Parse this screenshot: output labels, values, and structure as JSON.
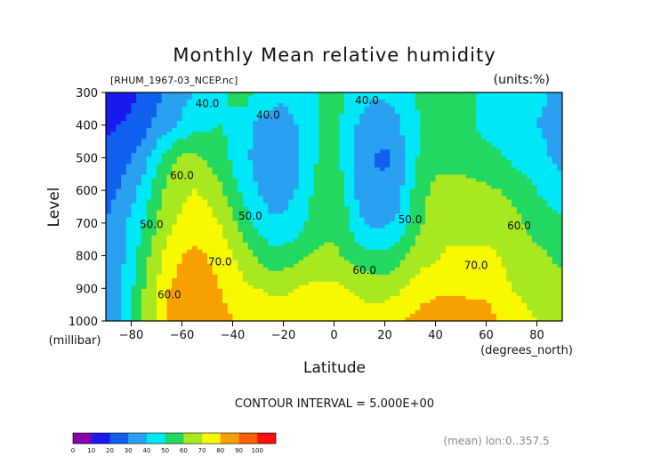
{
  "chart_data": {
    "type": "heatmap",
    "title": "Monthly Mean relative humidity",
    "file_label": "[RHUM_1967-03_NCEP.nc]",
    "units_label": "(units:%)",
    "ylabel": "Level",
    "ylabel_units": "(millibar)",
    "xlabel": "Latitude",
    "xlabel_units": "(degrees_north)",
    "xlim": [
      -90,
      90
    ],
    "ylim": [
      1000,
      300
    ],
    "x_ticks": [
      -80,
      -60,
      -40,
      -20,
      0,
      20,
      40,
      60,
      80
    ],
    "y_ticks": [
      300,
      400,
      500,
      600,
      700,
      800,
      900,
      1000
    ],
    "contour_interval_text": "CONTOUR INTERVAL = 5.000E+00",
    "footer_text": "(mean) lon:0..357.5",
    "colorbar": {
      "levels": [
        0,
        10,
        20,
        30,
        40,
        50,
        60,
        70,
        80,
        90,
        100
      ],
      "colors": [
        "#8800aa",
        "#1a1aee",
        "#1060f0",
        "#2aa0f0",
        "#00e8f8",
        "#22d860",
        "#a8e820",
        "#f8f800",
        "#f8a000",
        "#f86000",
        "#f81010"
      ]
    },
    "contour_labels": [
      {
        "text": "40.0",
        "lat": -50,
        "lev": 345
      },
      {
        "text": "40.0",
        "lat": -26,
        "lev": 380
      },
      {
        "text": "40.0",
        "lat": 13,
        "lev": 335
      },
      {
        "text": "50.0",
        "lat": -72,
        "lev": 715
      },
      {
        "text": "50.0",
        "lat": -33,
        "lev": 690
      },
      {
        "text": "50.0",
        "lat": 30,
        "lev": 700
      },
      {
        "text": "60.0",
        "lat": -60,
        "lev": 565
      },
      {
        "text": "60.0",
        "lat": 12,
        "lev": 855
      },
      {
        "text": "60.0",
        "lat": 73,
        "lev": 720
      },
      {
        "text": "60.0",
        "lat": -65,
        "lev": 930
      },
      {
        "text": "70.0",
        "lat": -45,
        "lev": 830
      },
      {
        "text": "70.0",
        "lat": 56,
        "lev": 840
      }
    ],
    "field": {
      "lats": [
        -90,
        -85,
        -80,
        -75,
        -70,
        -65,
        -60,
        -55,
        -50,
        -45,
        -40,
        -35,
        -30,
        -25,
        -20,
        -15,
        -10,
        -5,
        0,
        5,
        10,
        15,
        20,
        25,
        30,
        35,
        40,
        45,
        50,
        55,
        60,
        65,
        70,
        75,
        80,
        85,
        90
      ],
      "levels": [
        300,
        400,
        500,
        600,
        700,
        800,
        900,
        1000
      ],
      "values": [
        [
          10,
          14,
          18,
          22,
          28,
          32,
          37,
          40,
          44,
          47,
          52,
          54,
          48,
          44,
          42,
          44,
          48,
          50,
          52,
          50,
          45,
          42,
          42,
          44,
          48,
          52,
          54,
          54,
          52,
          50,
          48,
          46,
          44,
          44,
          42,
          40,
          38
        ],
        [
          18,
          20,
          22,
          26,
          32,
          36,
          42,
          46,
          48,
          50,
          48,
          44,
          38,
          36,
          36,
          40,
          46,
          50,
          52,
          48,
          38,
          34,
          34,
          38,
          46,
          52,
          54,
          54,
          52,
          50,
          46,
          44,
          44,
          42,
          40,
          38,
          36
        ],
        [
          22,
          26,
          30,
          36,
          46,
          56,
          62,
          62,
          58,
          54,
          48,
          42,
          36,
          34,
          34,
          38,
          46,
          52,
          54,
          46,
          36,
          30,
          28,
          32,
          44,
          54,
          58,
          58,
          58,
          56,
          54,
          52,
          48,
          46,
          44,
          40,
          36
        ],
        [
          26,
          30,
          36,
          44,
          56,
          64,
          68,
          70,
          68,
          62,
          54,
          46,
          40,
          36,
          36,
          40,
          48,
          54,
          56,
          48,
          36,
          32,
          32,
          36,
          48,
          58,
          62,
          62,
          62,
          62,
          62,
          60,
          58,
          54,
          50,
          46,
          44
        ],
        [
          30,
          36,
          42,
          50,
          60,
          68,
          72,
          76,
          74,
          70,
          62,
          54,
          46,
          42,
          42,
          44,
          52,
          56,
          58,
          52,
          42,
          38,
          38,
          42,
          52,
          60,
          64,
          66,
          66,
          64,
          66,
          64,
          64,
          60,
          56,
          54,
          52
        ],
        [
          30,
          36,
          44,
          56,
          66,
          74,
          80,
          82,
          80,
          76,
          70,
          64,
          58,
          54,
          54,
          56,
          60,
          62,
          62,
          58,
          54,
          52,
          52,
          56,
          62,
          66,
          68,
          72,
          72,
          72,
          72,
          70,
          66,
          64,
          62,
          60,
          58
        ],
        [
          30,
          38,
          48,
          60,
          70,
          80,
          84,
          86,
          84,
          80,
          76,
          72,
          70,
          68,
          68,
          70,
          72,
          72,
          72,
          70,
          68,
          66,
          66,
          68,
          72,
          76,
          78,
          78,
          78,
          78,
          78,
          74,
          70,
          68,
          66,
          64,
          62
        ],
        [
          30,
          40,
          50,
          62,
          72,
          82,
          86,
          88,
          86,
          84,
          80,
          78,
          76,
          76,
          76,
          78,
          78,
          78,
          78,
          76,
          74,
          74,
          76,
          78,
          82,
          84,
          86,
          86,
          86,
          84,
          84,
          80,
          76,
          72,
          70,
          68,
          66
        ]
      ]
    }
  }
}
